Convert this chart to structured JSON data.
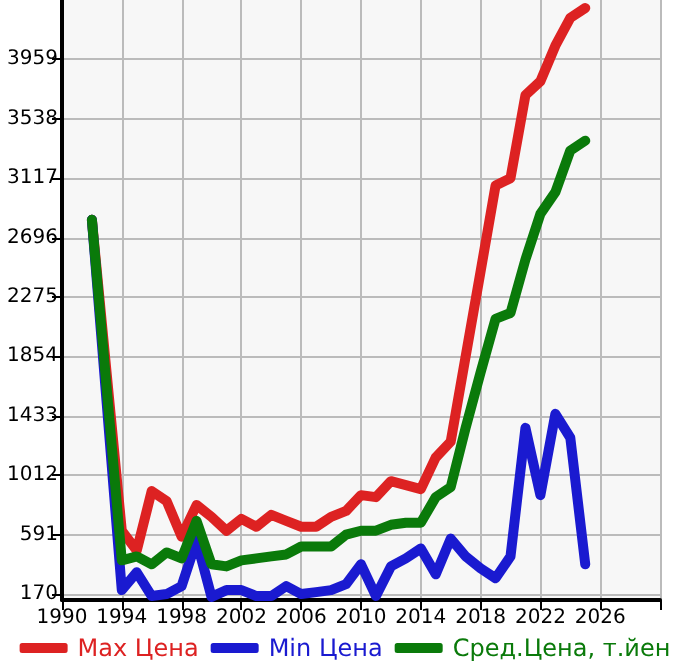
{
  "chart_data": {
    "type": "line",
    "x": [
      1992,
      1994,
      1995,
      1996,
      1997,
      1998,
      1999,
      2000,
      2001,
      2002,
      2003,
      2004,
      2005,
      2006,
      2007,
      2008,
      2009,
      2010,
      2011,
      2012,
      2013,
      2014,
      2015,
      2016,
      2017,
      2018,
      2019,
      2020,
      2021,
      2022,
      2023,
      2024,
      2025
    ],
    "series": [
      {
        "name": "Max Цена",
        "color": "#dd2222",
        "values": [
          2822,
          619,
          479,
          900,
          829,
          577,
          801,
          717,
          619,
          703,
          647,
          731,
          689,
          647,
          647,
          717,
          759,
          871,
          857,
          970,
          942,
          914,
          1138,
          1250,
          1854,
          2457,
          3065,
          3117,
          3706,
          3804,
          4056,
          4253,
          4323
        ]
      },
      {
        "name": "Min Цена",
        "color": "#1a1ad0",
        "values": [
          2822,
          198,
          324,
          156,
          170,
          226,
          549,
          150,
          198,
          198,
          156,
          156,
          226,
          170,
          184,
          198,
          240,
          381,
          156,
          366,
          423,
          493,
          310,
          563,
          437,
          352,
          282,
          437,
          1348,
          871,
          1447,
          1278,
          381
        ]
      },
      {
        "name": "Сред.Цена, т.йен",
        "color": "#0a7a0a",
        "values": [
          2822,
          409,
          437,
          381,
          465,
          423,
          689,
          381,
          366,
          409,
          423,
          437,
          451,
          507,
          507,
          507,
          591,
          619,
          619,
          661,
          675,
          675,
          857,
          928,
          1348,
          1741,
          2120,
          2162,
          2541,
          2864,
          3018,
          3313,
          3383
        ]
      }
    ],
    "xlim": [
      1990,
      2030
    ],
    "xticks": [
      1990,
      1994,
      1998,
      2002,
      2006,
      2010,
      2014,
      2018,
      2022,
      2026,
      {
        "value": 2030,
        "label": null
      }
    ],
    "ylim": [
      128,
      4380
    ],
    "yticks": [
      170,
      591,
      1012,
      1433,
      1854,
      2275,
      2696,
      3117,
      3538,
      3959
    ],
    "grid": true,
    "legend": "bottom",
    "marker": "none",
    "line_style": "solid"
  }
}
